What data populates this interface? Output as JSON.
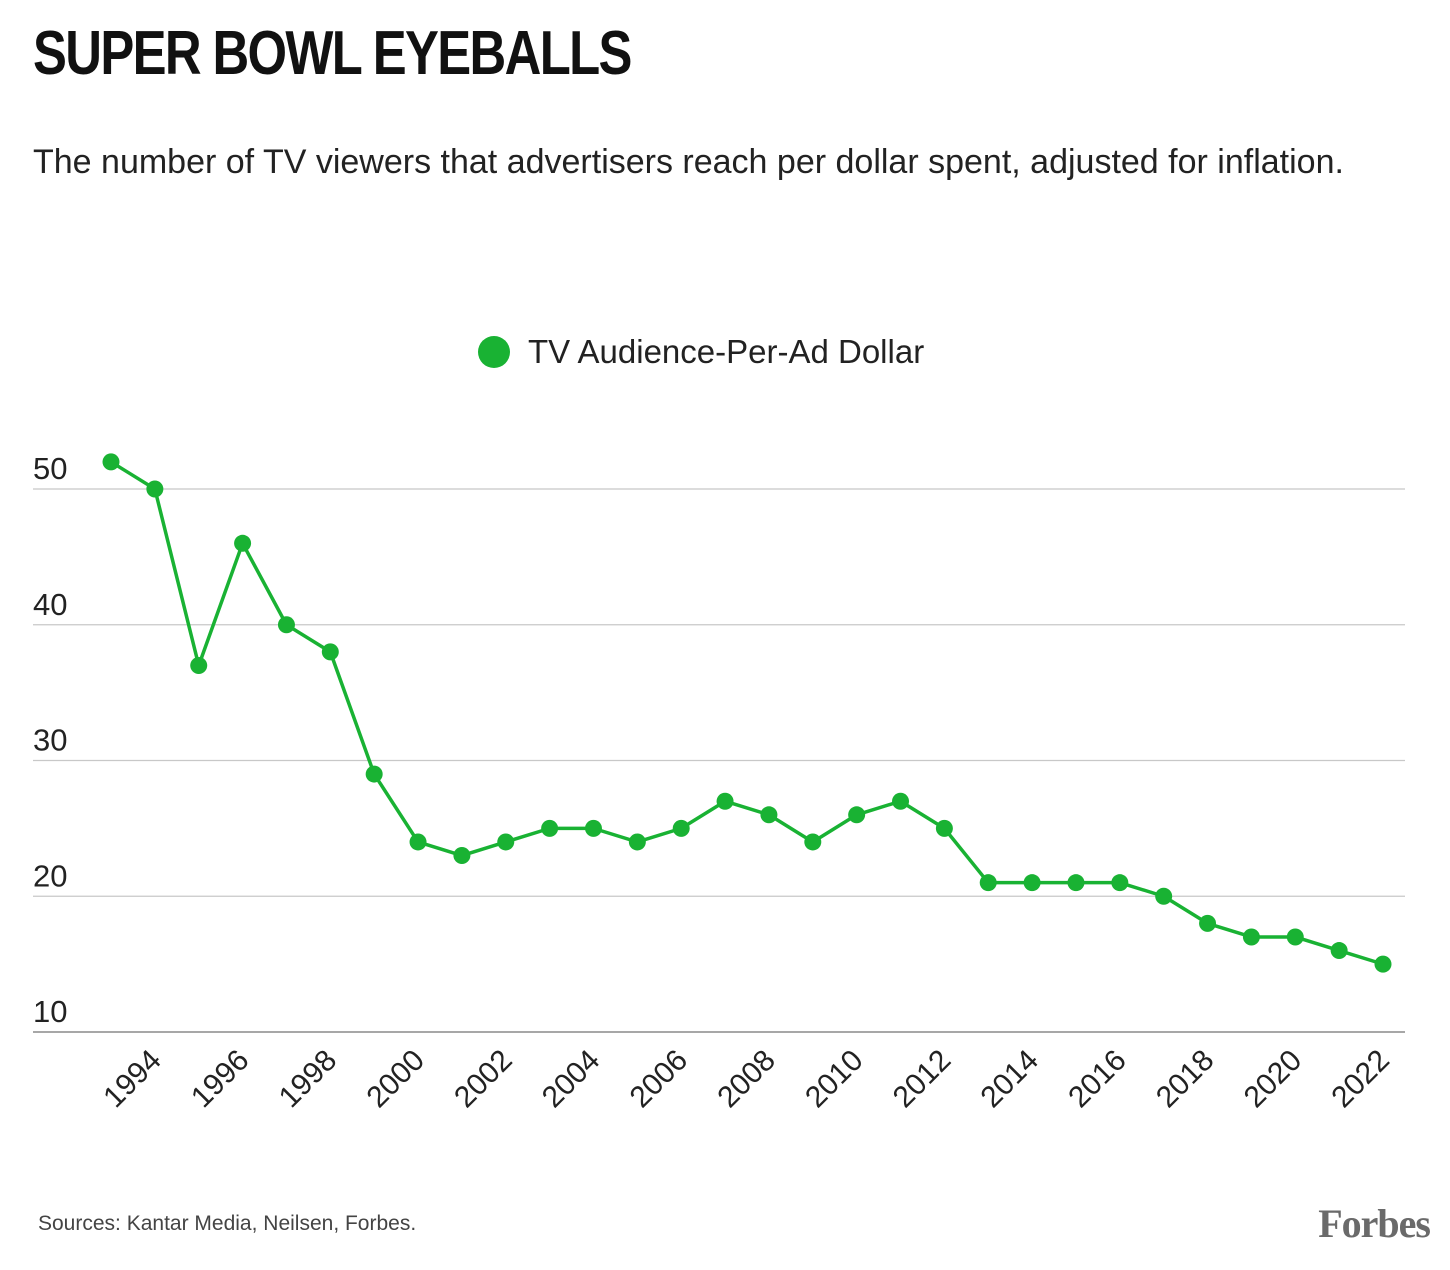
{
  "title": "SUPER BOWL EYEBALLS",
  "subtitle": "The number of TV viewers that advertisers reach per dollar spent, adjusted for inflation.",
  "legend": {
    "label": "TV Audience-Per-Ad Dollar"
  },
  "source": "Sources: Kantar Media, Neilsen, Forbes.",
  "brand": "Forbes",
  "colors": {
    "series": "#19b233",
    "grid": "#c8c8c8",
    "axis": "#8a8a8a",
    "text": "#222222"
  },
  "chart_data": {
    "type": "line",
    "title": "SUPER BOWL EYEBALLS",
    "xlabel": "",
    "ylabel": "",
    "ylim": [
      10,
      50
    ],
    "xlim": [
      1993,
      2022
    ],
    "yticks": [
      10,
      20,
      30,
      40,
      50
    ],
    "xticks": [
      1994,
      1996,
      1998,
      2000,
      2002,
      2004,
      2006,
      2008,
      2010,
      2012,
      2014,
      2016,
      2018,
      2020,
      2022
    ],
    "grid": true,
    "legend_position": "top-center",
    "series": [
      {
        "name": "TV Audience-Per-Ad Dollar",
        "x": [
          1993,
          1994,
          1995,
          1996,
          1997,
          1998,
          1999,
          2000,
          2001,
          2002,
          2003,
          2004,
          2005,
          2006,
          2007,
          2008,
          2009,
          2010,
          2011,
          2012,
          2013,
          2014,
          2015,
          2016,
          2017,
          2018,
          2019,
          2020,
          2021,
          2022
        ],
        "values": [
          52,
          50,
          37,
          46,
          40,
          38,
          29,
          24,
          23,
          24,
          25,
          25,
          24,
          25,
          27,
          26,
          24,
          26,
          27,
          25,
          21,
          21,
          21,
          21,
          20,
          18,
          17,
          17,
          16,
          15
        ]
      }
    ]
  }
}
